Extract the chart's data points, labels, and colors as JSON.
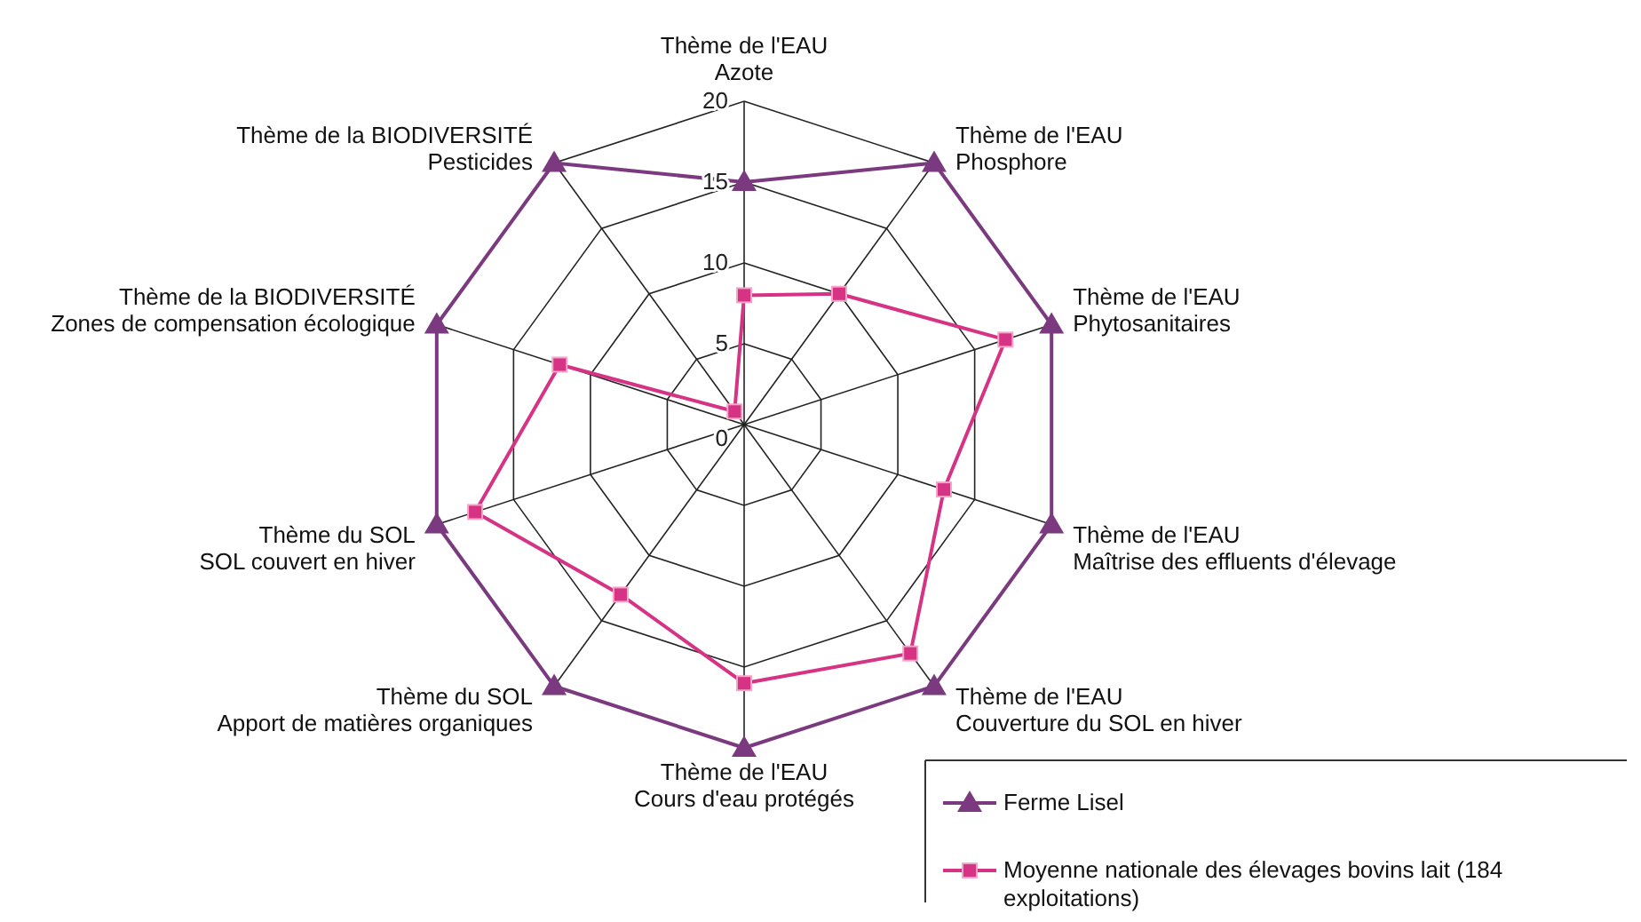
{
  "chart_data": {
    "type": "radar",
    "categories": [
      "Thème de l'EAU\nAzote",
      "Thème de l'EAU\nPhosphore",
      "Thème de l'EAU\nPhytosanitaires",
      "Thème de l'EAU\nMaîtrise des effluents d'élevage",
      "Thème de l'EAU\nCouverture du SOL en hiver",
      "Thème de l'EAU\nCours d'eau protégés",
      "Thème du SOL\nApport de matières organiques",
      "Thème du SOL\nSOL couvert en hiver",
      "Thème de la BIODIVERSITÉ\nZones de compensation écologique",
      "Thème de la BIODIVERSITÉ\nPesticides"
    ],
    "series": [
      {
        "name": "Ferme Lisel",
        "color": "#7b3a7f",
        "marker": "triangle",
        "values": [
          15,
          20,
          20,
          20,
          20,
          20,
          20,
          20,
          20,
          20
        ]
      },
      {
        "name": "Moyenne nationale des élevages bovins lait (184 exploitations)",
        "color": "#d63384",
        "marker": "square",
        "values": [
          8,
          10,
          17,
          13,
          17.5,
          16,
          13,
          17.5,
          12,
          1
        ]
      }
    ],
    "ylim": [
      0,
      20
    ],
    "yticks": [
      0,
      5,
      10,
      15,
      20
    ],
    "grid": true,
    "legend": "bottom right"
  }
}
